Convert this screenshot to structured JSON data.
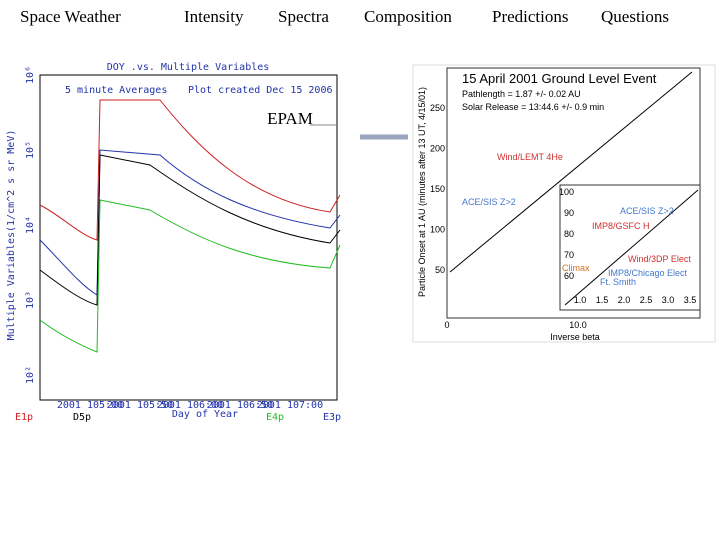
{
  "nav": [
    "Space Weather",
    "Intensity",
    "Spectra",
    "Composition",
    "Predictions",
    "Questions"
  ],
  "left_figure": {
    "title": "DOY .vs. Multiple Variables",
    "averages": "5 minute Averages",
    "created": "Plot created Dec 15 2006",
    "label": "EPAM",
    "y_label": "Multiple Variables(1/cm^2 s sr MeV)",
    "x_label": "Day of Year",
    "y_ticks": [
      "10⁶",
      "10⁵",
      "10⁴",
      "10³",
      "10²"
    ],
    "x_ticks": [
      "2001 105:00",
      "2001 105:50",
      "2001 106:00",
      "2001 106:50",
      "2001 107:00"
    ],
    "channels": [
      "E1p",
      "D5p",
      "E4p",
      "E3p"
    ]
  },
  "right_figure": {
    "title": "15 April 2001 Ground Level Event",
    "pathlength": "Pathlength = 1.87 +/- 0.02 AU",
    "release": "Solar Release = 13:44.6 +/- 0.9 min",
    "y_label": "Particle Onset at 1 AU (minutes after 13 UT, 4/15/01)",
    "x_label": "Inverse beta",
    "y_ticks": [
      "250",
      "200",
      "150",
      "100",
      "50"
    ],
    "x_ticks": [
      "0",
      "10.0"
    ],
    "series": [
      "Wind/LEMT 4He",
      "ACE/SIS Z>2"
    ],
    "inset": {
      "series": [
        "ACE/SIS Z>2",
        "IMP8/GSFC H",
        "Wind/3DP Elect",
        "Climax",
        "IMP8/Chicago Elect",
        "Ft. Smith"
      ],
      "y_ticks": [
        "100",
        "90",
        "80",
        "70",
        "60"
      ],
      "x_ticks": [
        "1.0",
        "1.5",
        "2.0",
        "2.5",
        "3.0",
        "3.5"
      ]
    }
  }
}
